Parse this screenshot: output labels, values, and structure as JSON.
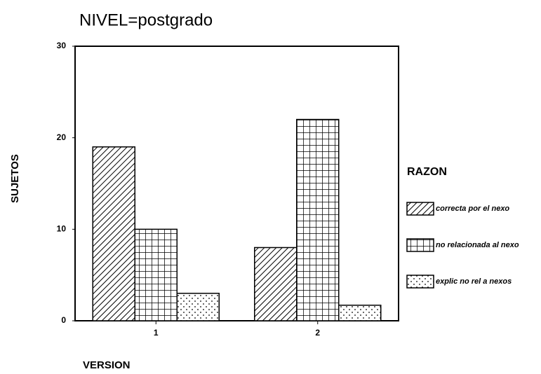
{
  "chart_data": {
    "type": "bar",
    "title": "NIVEL=postgrado",
    "x_label": "VERSION",
    "y_label": "SUJETOS",
    "legend_title": "RAZON",
    "legend": "right",
    "categories": [
      "1",
      "2"
    ],
    "series": [
      {
        "name": "correcta por el nexo",
        "color": "#000000",
        "pattern": "hatch",
        "values": [
          19,
          8
        ]
      },
      {
        "name": "no relacionada al nexo",
        "color": "#000000",
        "pattern": "grid",
        "values": [
          10,
          22
        ]
      },
      {
        "name": "explic no rel a nexos",
        "color": "#000000",
        "pattern": "dots",
        "values": [
          3,
          1.7
        ]
      }
    ],
    "ylim": [
      0,
      30
    ],
    "yticks": [
      0,
      10,
      20,
      30
    ],
    "grid": false
  }
}
